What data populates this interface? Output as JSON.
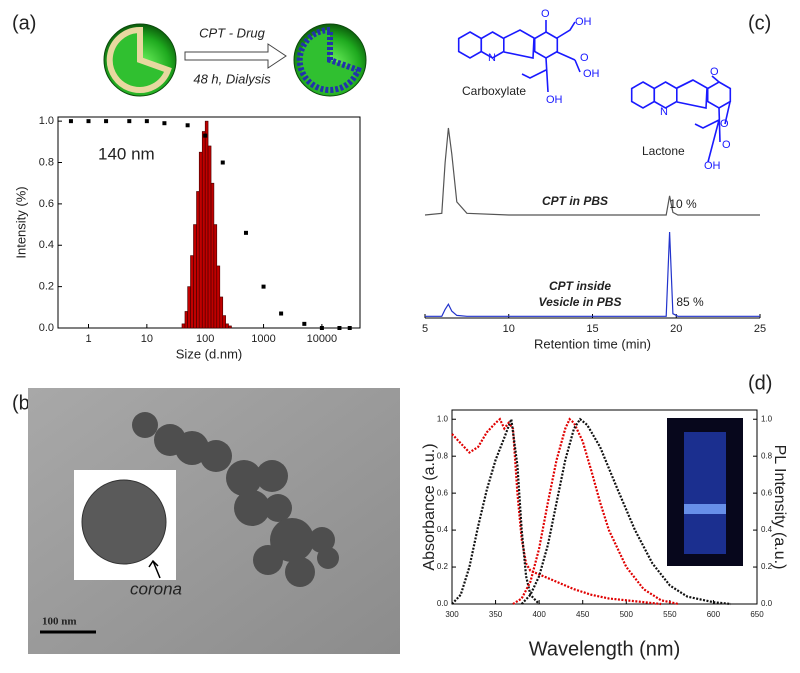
{
  "panel_labels": [
    "(a)",
    "(b)",
    "(c)",
    "(d)"
  ],
  "scheme": {
    "step1": "CPT - Drug",
    "step2": "48 h, Dialysis"
  },
  "structures": {
    "carboxylate": {
      "name": "Carboxylate",
      "atoms": [
        "N",
        "O",
        "OH",
        "O",
        "OH",
        "OH"
      ]
    },
    "lactone": {
      "name": "Lactone",
      "atoms": [
        "O",
        "N",
        "O",
        "O",
        "OH"
      ]
    }
  },
  "micrograph": {
    "inset_label": "corona",
    "scale_bar": "100 nm"
  },
  "chart_data": [
    {
      "type": "histogram",
      "xscale": "log",
      "frame": true,
      "bins": [
        40,
        45,
        50,
        56,
        63,
        71,
        79,
        89,
        100,
        112,
        126,
        141,
        158,
        178,
        200,
        224,
        251,
        282
      ],
      "values": [
        0.02,
        0.08,
        0.2,
        0.35,
        0.5,
        0.66,
        0.85,
        0.95,
        1.0,
        0.88,
        0.7,
        0.5,
        0.3,
        0.15,
        0.06,
        0.02,
        0.01
      ],
      "color": "#c00000",
      "overlay": {
        "type": "scatter",
        "color": "#000000",
        "x": [
          0.5,
          1,
          2,
          5,
          10,
          20,
          50,
          100,
          200,
          500,
          1000,
          2000,
          5000,
          10000,
          20000,
          30000
        ],
        "values": [
          1.0,
          1.0,
          1.0,
          1.0,
          1.0,
          0.99,
          0.98,
          0.93,
          0.8,
          0.46,
          0.2,
          0.07,
          0.02,
          0.0,
          0.0,
          0.0
        ]
      },
      "xlim": [
        0.3,
        45000
      ],
      "xticks": [
        1,
        10,
        100,
        1000,
        10000
      ],
      "ylim": [
        0,
        1.02
      ],
      "yticks": [
        {
          "value": 0,
          "label": "0.0"
        },
        {
          "value": 0.2,
          "label": "0.2"
        },
        {
          "value": 0.4,
          "label": "0.4"
        },
        {
          "value": 0.6,
          "label": "0.6"
        },
        {
          "value": 0.8,
          "label": "0.8"
        },
        {
          "value": 1,
          "label": "1.0"
        }
      ],
      "xlabel": "Size (d.nm)",
      "ylabel": "Intensity (%)",
      "annotations": [
        "140 nm"
      ],
      "annotation_color": "#2030c0"
    },
    {
      "type": "line",
      "frame": false,
      "xlim": [
        5,
        25
      ],
      "ylim": [
        0,
        1
      ],
      "series": [
        {
          "color": "#555555",
          "x": [
            5,
            6,
            6.2,
            6.4,
            6.6,
            6.9,
            7.5,
            10,
            19.4,
            19.6,
            19.8,
            20.1,
            25
          ],
          "values": [
            0,
            0.02,
            0.6,
            1.0,
            0.7,
            0.15,
            0.02,
            0,
            0,
            0.22,
            0.03,
            0,
            0
          ]
        }
      ],
      "annotations": [
        "CPT in PBS",
        "10 %"
      ],
      "annotation_color": "#111111"
    },
    {
      "type": "line",
      "frame": false,
      "xlim": [
        5,
        25
      ],
      "ylim": [
        0,
        1
      ],
      "xticks": [
        5,
        10,
        15,
        20,
        25
      ],
      "series": [
        {
          "color": "#2233cc",
          "x": [
            5,
            6,
            6.2,
            6.4,
            6.6,
            6.9,
            7.5,
            10,
            19.4,
            19.6,
            19.8,
            20.1,
            25
          ],
          "values": [
            0.02,
            0.02,
            0.1,
            0.16,
            0.08,
            0.03,
            0.02,
            0.02,
            0.02,
            1.0,
            0.05,
            0.02,
            0.02
          ]
        }
      ],
      "xlabel": "Retention time (min)",
      "annotations": [
        "CPT inside",
        "Vesicle in PBS",
        "85 %"
      ],
      "annotation_color": "#111111"
    },
    {
      "type": "line",
      "frame": true,
      "xlim": [
        300,
        650
      ],
      "xticks": [
        300,
        350,
        400,
        450,
        500,
        550,
        600,
        650
      ],
      "ylim": [
        0,
        1.05
      ],
      "yticks": [
        {
          "value": 0,
          "label": "0.0"
        },
        {
          "value": 0.2,
          "label": "0.2"
        },
        {
          "value": 0.4,
          "label": "0.4"
        },
        {
          "value": 0.6,
          "label": "0.6"
        },
        {
          "value": 0.8,
          "label": "0.8"
        },
        {
          "value": 1,
          "label": "1.0"
        }
      ],
      "y2lim": [
        0,
        1.05
      ],
      "y2ticks": [
        {
          "value": 0,
          "label": "0.0"
        },
        {
          "value": 0.2,
          "label": "0.2"
        },
        {
          "value": 0.4,
          "label": "0.4"
        },
        {
          "value": 0.6,
          "label": "0.6"
        },
        {
          "value": 0.8,
          "label": "0.8"
        },
        {
          "value": 1,
          "label": "1.0"
        }
      ],
      "series": [
        {
          "color": "#e00000",
          "x": [
            300,
            310,
            320,
            330,
            340,
            350,
            355,
            360,
            365,
            370,
            375,
            380,
            385,
            390,
            400,
            420,
            440,
            460,
            480,
            500,
            540
          ],
          "values": [
            0.92,
            0.87,
            0.82,
            0.85,
            0.93,
            0.98,
            1.0,
            0.95,
            0.98,
            0.95,
            0.6,
            0.35,
            0.22,
            0.18,
            0.16,
            0.12,
            0.08,
            0.05,
            0.03,
            0.02,
            0.0
          ]
        },
        {
          "color": "#111111",
          "x": [
            300,
            310,
            320,
            330,
            340,
            350,
            360,
            368,
            375,
            380,
            385,
            390,
            400
          ],
          "values": [
            0.0,
            0.05,
            0.2,
            0.42,
            0.62,
            0.78,
            0.9,
            1.0,
            0.75,
            0.4,
            0.15,
            0.05,
            0.0
          ]
        },
        {
          "color": "#e00000",
          "axis": "y2",
          "x": [
            370,
            380,
            390,
            400,
            410,
            420,
            430,
            435,
            440,
            450,
            460,
            470,
            480,
            500,
            520,
            540,
            560
          ],
          "values": [
            0,
            0.03,
            0.12,
            0.3,
            0.55,
            0.78,
            0.95,
            1.0,
            0.98,
            0.88,
            0.72,
            0.55,
            0.4,
            0.2,
            0.08,
            0.02,
            0
          ]
        },
        {
          "color": "#111111",
          "axis": "y2",
          "x": [
            380,
            390,
            400,
            410,
            420,
            430,
            440,
            447,
            455,
            470,
            490,
            510,
            530,
            550,
            570,
            600,
            620
          ],
          "values": [
            0,
            0.05,
            0.15,
            0.32,
            0.55,
            0.78,
            0.95,
            1.0,
            0.97,
            0.85,
            0.62,
            0.4,
            0.22,
            0.1,
            0.04,
            0.01,
            0
          ]
        }
      ],
      "xlabel": "Wavelength (nm)",
      "ylabel": "Absorbance (a.u.)",
      "y2label": "PL Intensity (a.u.)"
    }
  ]
}
